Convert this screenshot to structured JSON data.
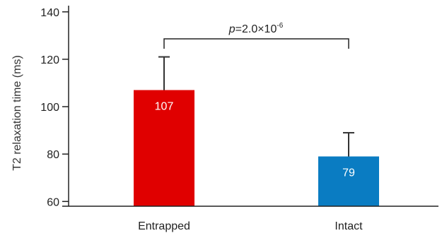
{
  "chart_data": {
    "type": "bar",
    "title": "",
    "xlabel": "",
    "ylabel": "T2 relaxation time (ms)",
    "ylim": [
      58,
      145
    ],
    "yticks": [
      60,
      80,
      100,
      120,
      140
    ],
    "categories": [
      "Entrapped",
      "Intact"
    ],
    "values": [
      107,
      79
    ],
    "value_labels": [
      "107",
      "79"
    ],
    "error_upper": [
      121,
      89
    ],
    "bar_colors": [
      "#e00000",
      "#0a7cc2"
    ],
    "annotation": {
      "prefix": "p",
      "text": "=2.0×10",
      "superscript": "-6",
      "brackets": [
        "Entrapped",
        "Intact"
      ]
    },
    "grid": false,
    "legend": "none"
  }
}
